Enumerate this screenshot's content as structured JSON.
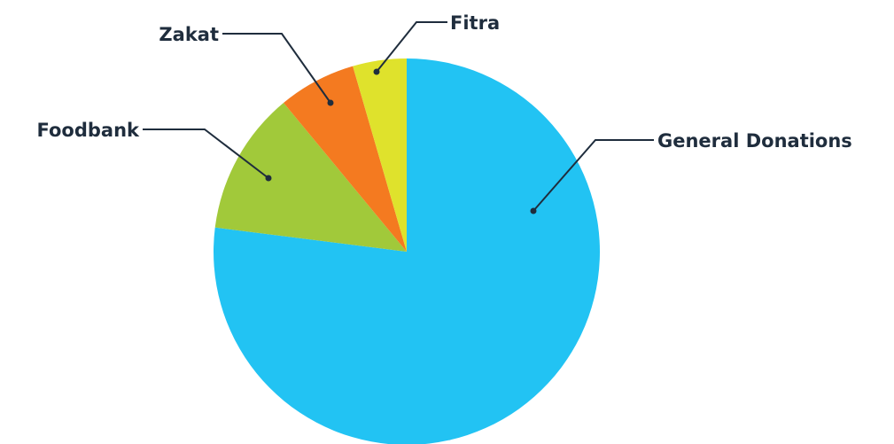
{
  "chart_data": {
    "type": "pie",
    "title": "",
    "start_angle_deg": 0,
    "direction": "clockwise",
    "slices": [
      {
        "label": "General Donations",
        "value": 77,
        "color": "#22c3f3"
      },
      {
        "label": "Foodbank",
        "value": 12,
        "color": "#a1c93a"
      },
      {
        "label": "Zakat",
        "value": 6.5,
        "color": "#f47a20"
      },
      {
        "label": "Fitra",
        "value": 4.5,
        "color": "#dfe22c"
      }
    ]
  }
}
